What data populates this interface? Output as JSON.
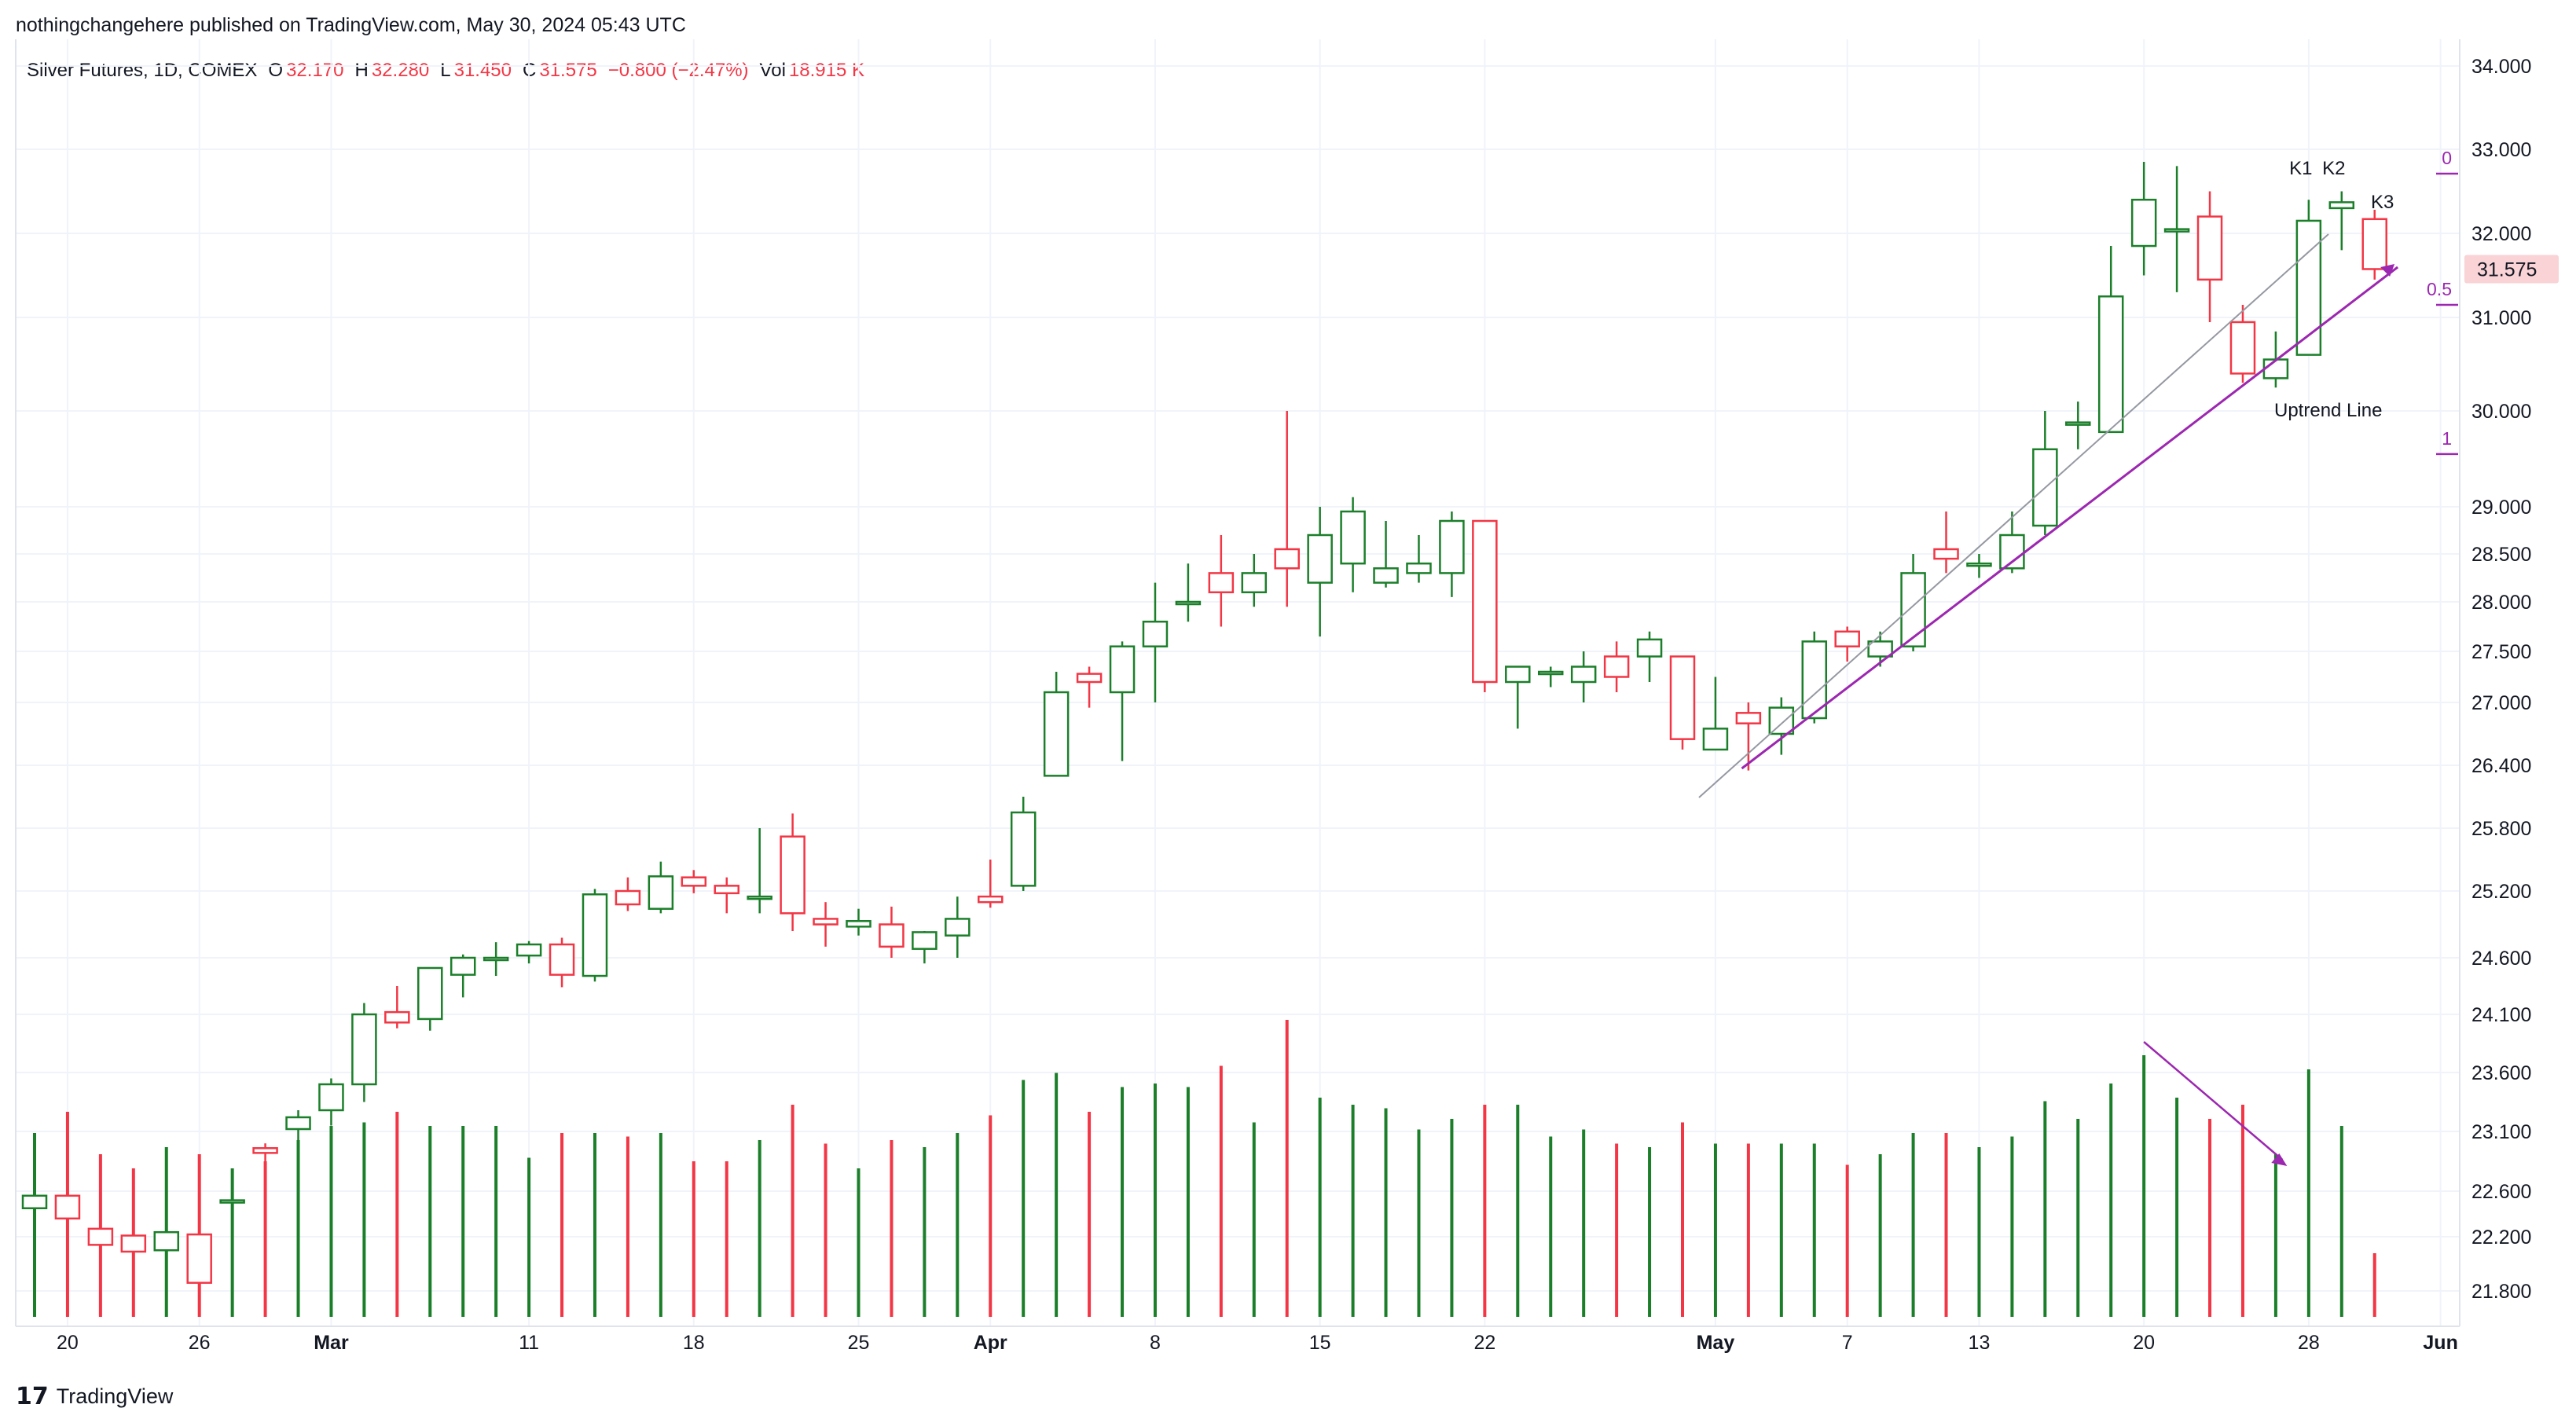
{
  "header": {
    "published": "nothingchangehere published on TradingView.com, May 30, 2024 05:43 UTC"
  },
  "legend": {
    "symbol": "Silver Futures, 1D, COMEX",
    "o_label": "O",
    "o_value": "32.170",
    "h_label": "H",
    "h_value": "32.280",
    "l_label": "L",
    "l_value": "31.450",
    "c_label": "C",
    "c_value": "31.575",
    "change": "−0.800 (−2.47%)",
    "vol_label": "Vol",
    "vol_value": "18.915 K"
  },
  "footer": {
    "logo": "17",
    "brand": "TradingView"
  },
  "colors": {
    "up": "#1b7f2a",
    "down": "#f23645",
    "annotation": "#9c27b0",
    "price_tag_bg": "#f9d3d6"
  },
  "chart_data": {
    "type": "candlestick",
    "price_axis": {
      "ticks": [
        "34.000",
        "33.000",
        "32.000",
        "31.000",
        "30.000",
        "29.000",
        "28.500",
        "28.000",
        "27.500",
        "27.000",
        "26.400",
        "25.800",
        "25.200",
        "24.600",
        "24.100",
        "23.600",
        "23.100",
        "22.600",
        "22.200",
        "21.800"
      ],
      "last_price": "31.575"
    },
    "time_axis": {
      "labels": [
        {
          "text": "20",
          "bar": 1
        },
        {
          "text": "26",
          "bar": 5
        },
        {
          "text": "Mar",
          "bar": 9
        },
        {
          "text": "11",
          "bar": 15
        },
        {
          "text": "18",
          "bar": 20
        },
        {
          "text": "25",
          "bar": 25
        },
        {
          "text": "Apr",
          "bar": 29
        },
        {
          "text": "8",
          "bar": 34
        },
        {
          "text": "15",
          "bar": 39
        },
        {
          "text": "22",
          "bar": 44
        },
        {
          "text": "May",
          "bar": 51
        },
        {
          "text": "7",
          "bar": 55
        },
        {
          "text": "13",
          "bar": 59
        },
        {
          "text": "20",
          "bar": 64
        },
        {
          "text": "28",
          "bar": 69
        },
        {
          "text": "Jun",
          "bar": 73
        }
      ]
    },
    "candles": [
      {
        "o": 22.45,
        "h": 22.61,
        "l": 22.05,
        "c": 22.56,
        "v": 2.6
      },
      {
        "o": 22.56,
        "h": 22.6,
        "l": 22.2,
        "c": 22.36,
        "v": 2.9
      },
      {
        "o": 22.27,
        "h": 22.4,
        "l": 22.08,
        "c": 22.14,
        "v": 2.3
      },
      {
        "o": 22.21,
        "h": 22.5,
        "l": 22.0,
        "c": 22.09,
        "v": 2.1
      },
      {
        "o": 22.1,
        "h": 22.25,
        "l": 21.95,
        "c": 22.24,
        "v": 2.4
      },
      {
        "o": 22.22,
        "h": 22.22,
        "l": 21.82,
        "c": 21.86,
        "v": 2.3
      },
      {
        "o": 22.52,
        "h": 22.58,
        "l": 22.34,
        "c": 22.52,
        "v": 2.1
      },
      {
        "o": 22.96,
        "h": 23.0,
        "l": 22.82,
        "c": 22.92,
        "v": 2.2
      },
      {
        "o": 23.12,
        "h": 23.28,
        "l": 22.98,
        "c": 23.22,
        "v": 2.5
      },
      {
        "o": 23.28,
        "h": 23.55,
        "l": 23.15,
        "c": 23.5,
        "v": 2.7
      },
      {
        "o": 23.5,
        "h": 24.2,
        "l": 23.35,
        "c": 24.1,
        "v": 2.75
      },
      {
        "o": 24.12,
        "h": 24.35,
        "l": 23.98,
        "c": 24.03,
        "v": 2.9
      },
      {
        "o": 24.06,
        "h": 24.51,
        "l": 23.96,
        "c": 24.51,
        "v": 2.7
      },
      {
        "o": 24.45,
        "h": 24.63,
        "l": 24.25,
        "c": 24.6,
        "v": 2.7
      },
      {
        "o": 24.6,
        "h": 24.74,
        "l": 24.44,
        "c": 24.6,
        "v": 2.7
      },
      {
        "o": 24.62,
        "h": 24.75,
        "l": 24.55,
        "c": 24.72,
        "v": 2.25
      },
      {
        "o": 24.72,
        "h": 24.78,
        "l": 24.34,
        "c": 24.45,
        "v": 2.6
      },
      {
        "o": 24.44,
        "h": 25.22,
        "l": 24.39,
        "c": 25.17,
        "v": 2.6
      },
      {
        "o": 25.2,
        "h": 25.33,
        "l": 25.02,
        "c": 25.08,
        "v": 2.55
      },
      {
        "o": 25.04,
        "h": 25.48,
        "l": 25.0,
        "c": 25.34,
        "v": 2.6
      },
      {
        "o": 25.33,
        "h": 25.4,
        "l": 25.18,
        "c": 25.25,
        "v": 2.2
      },
      {
        "o": 25.25,
        "h": 25.33,
        "l": 25.0,
        "c": 25.18,
        "v": 2.2
      },
      {
        "o": 25.15,
        "h": 25.8,
        "l": 25.0,
        "c": 25.15,
        "v": 2.5
      },
      {
        "o": 25.72,
        "h": 25.94,
        "l": 24.84,
        "c": 25.0,
        "v": 3.0
      },
      {
        "o": 24.95,
        "h": 25.1,
        "l": 24.7,
        "c": 24.9,
        "v": 2.45
      },
      {
        "o": 24.88,
        "h": 25.04,
        "l": 24.8,
        "c": 24.93,
        "v": 2.1
      },
      {
        "o": 24.9,
        "h": 25.06,
        "l": 24.6,
        "c": 24.7,
        "v": 2.5
      },
      {
        "o": 24.68,
        "h": 24.84,
        "l": 24.55,
        "c": 24.83,
        "v": 2.4
      },
      {
        "o": 24.8,
        "h": 25.15,
        "l": 24.6,
        "c": 24.95,
        "v": 2.6
      },
      {
        "o": 25.15,
        "h": 25.5,
        "l": 25.05,
        "c": 25.1,
        "v": 2.85
      },
      {
        "o": 25.25,
        "h": 26.1,
        "l": 25.2,
        "c": 25.95,
        "v": 3.35
      },
      {
        "o": 26.3,
        "h": 27.3,
        "l": 26.3,
        "c": 27.1,
        "v": 3.45
      },
      {
        "o": 27.28,
        "h": 27.35,
        "l": 26.95,
        "c": 27.2,
        "v": 2.9
      },
      {
        "o": 27.1,
        "h": 27.6,
        "l": 26.44,
        "c": 27.55,
        "v": 3.25
      },
      {
        "o": 27.55,
        "h": 28.2,
        "l": 27.0,
        "c": 27.8,
        "v": 3.3
      },
      {
        "o": 28.0,
        "h": 28.4,
        "l": 27.8,
        "c": 28.0,
        "v": 3.25
      },
      {
        "o": 28.3,
        "h": 28.7,
        "l": 27.75,
        "c": 28.1,
        "v": 3.55
      },
      {
        "o": 28.1,
        "h": 28.5,
        "l": 27.95,
        "c": 28.3,
        "v": 2.75
      },
      {
        "o": 28.55,
        "h": 30.0,
        "l": 27.95,
        "c": 28.35,
        "v": 4.2
      },
      {
        "o": 28.2,
        "h": 29.0,
        "l": 27.65,
        "c": 28.7,
        "v": 3.1
      },
      {
        "o": 28.4,
        "h": 29.1,
        "l": 28.1,
        "c": 28.95,
        "v": 3.0
      },
      {
        "o": 28.2,
        "h": 28.85,
        "l": 28.15,
        "c": 28.35,
        "v": 2.95
      },
      {
        "o": 28.3,
        "h": 28.7,
        "l": 28.2,
        "c": 28.4,
        "v": 2.65
      },
      {
        "o": 28.3,
        "h": 28.95,
        "l": 28.05,
        "c": 28.85,
        "v": 2.8
      },
      {
        "o": 28.85,
        "h": 28.85,
        "l": 27.1,
        "c": 27.2,
        "v": 3.0
      },
      {
        "o": 27.2,
        "h": 27.35,
        "l": 26.75,
        "c": 27.35,
        "v": 3.0
      },
      {
        "o": 27.3,
        "h": 27.35,
        "l": 27.15,
        "c": 27.3,
        "v": 2.55
      },
      {
        "o": 27.2,
        "h": 27.5,
        "l": 27.0,
        "c": 27.35,
        "v": 2.65
      },
      {
        "o": 27.45,
        "h": 27.6,
        "l": 27.1,
        "c": 27.25,
        "v": 2.45
      },
      {
        "o": 27.45,
        "h": 27.7,
        "l": 27.2,
        "c": 27.62,
        "v": 2.4
      },
      {
        "o": 27.45,
        "h": 27.45,
        "l": 26.55,
        "c": 26.65,
        "v": 2.75
      },
      {
        "o": 26.55,
        "h": 27.25,
        "l": 26.55,
        "c": 26.75,
        "v": 2.45
      },
      {
        "o": 26.9,
        "h": 27.0,
        "l": 26.35,
        "c": 26.8,
        "v": 2.45
      },
      {
        "o": 26.7,
        "h": 27.05,
        "l": 26.5,
        "c": 26.95,
        "v": 2.45
      },
      {
        "o": 26.85,
        "h": 27.7,
        "l": 26.8,
        "c": 27.6,
        "v": 2.45
      },
      {
        "o": 27.7,
        "h": 27.75,
        "l": 27.4,
        "c": 27.55,
        "v": 2.15
      },
      {
        "o": 27.45,
        "h": 27.7,
        "l": 27.35,
        "c": 27.6,
        "v": 2.3
      },
      {
        "o": 27.55,
        "h": 28.5,
        "l": 27.5,
        "c": 28.3,
        "v": 2.6
      },
      {
        "o": 28.55,
        "h": 28.95,
        "l": 28.3,
        "c": 28.45,
        "v": 2.6
      },
      {
        "o": 28.38,
        "h": 28.5,
        "l": 28.25,
        "c": 28.4,
        "v": 2.4
      },
      {
        "o": 28.35,
        "h": 28.95,
        "l": 28.3,
        "c": 28.7,
        "v": 2.55
      },
      {
        "o": 28.8,
        "h": 30.0,
        "l": 28.7,
        "c": 29.6,
        "v": 3.05
      },
      {
        "o": 29.88,
        "h": 30.1,
        "l": 29.6,
        "c": 29.88,
        "v": 2.8
      },
      {
        "o": 29.78,
        "h": 31.85,
        "l": 29.78,
        "c": 31.25,
        "v": 3.3
      },
      {
        "o": 31.85,
        "h": 32.85,
        "l": 31.5,
        "c": 32.4,
        "v": 3.7
      },
      {
        "o": 32.05,
        "h": 32.8,
        "l": 31.3,
        "c": 32.05,
        "v": 3.1
      },
      {
        "o": 32.2,
        "h": 32.5,
        "l": 30.95,
        "c": 31.45,
        "v": 2.8
      },
      {
        "o": 30.95,
        "h": 31.15,
        "l": 30.3,
        "c": 30.4,
        "v": 3.0
      },
      {
        "o": 30.35,
        "h": 30.85,
        "l": 30.25,
        "c": 30.55,
        "v": 2.3
      },
      {
        "o": 30.6,
        "h": 32.4,
        "l": 30.6,
        "c": 32.15,
        "v": 3.5
      },
      {
        "o": 32.3,
        "h": 32.5,
        "l": 31.8,
        "c": 32.37,
        "v": 2.7
      },
      {
        "o": 32.17,
        "h": 32.28,
        "l": 31.45,
        "c": 31.575,
        "v": 0.9
      }
    ],
    "annotations": {
      "fib_labels": [
        "0",
        "0.5",
        "1"
      ],
      "candle_labels": [
        "K1",
        "K2",
        "K3"
      ],
      "uptrend_label": "Uptrend Line"
    }
  }
}
